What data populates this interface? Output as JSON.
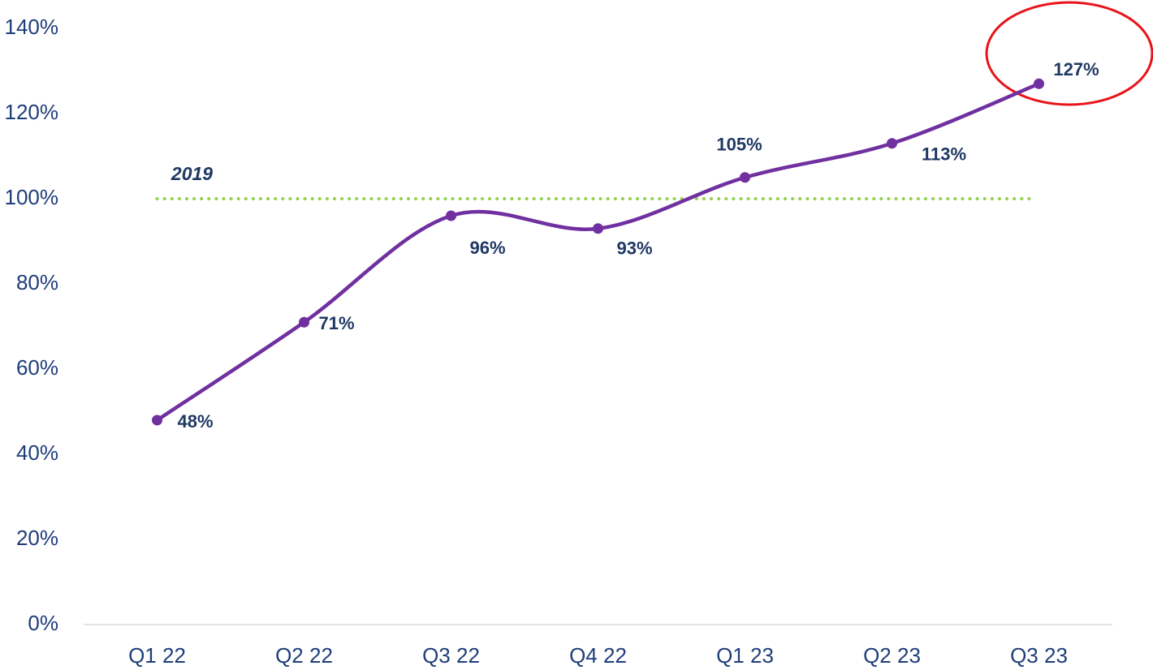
{
  "chart_data": {
    "type": "line",
    "categories": [
      "Q1 22",
      "Q2 22",
      "Q3 22",
      "Q4 22",
      "Q1 23",
      "Q2 23",
      "Q3 23"
    ],
    "series": [
      {
        "color": "#7030a0",
        "values": [
          48,
          71,
          96,
          93,
          105,
          113,
          127
        ],
        "value_labels": [
          "48%",
          "71%",
          "96%",
          "93%",
          "105%",
          "113%",
          "127%"
        ]
      }
    ],
    "ylim": [
      0,
      140
    ],
    "yticks": [
      {
        "value": 0,
        "label": "0%"
      },
      {
        "value": 20,
        "label": "20%"
      },
      {
        "value": 40,
        "label": "40%"
      },
      {
        "value": 60,
        "label": "60%"
      },
      {
        "value": 80,
        "label": "80%"
      },
      {
        "value": 100,
        "label": "100%"
      },
      {
        "value": 120,
        "label": "120%"
      },
      {
        "value": 140,
        "label": "140%"
      }
    ],
    "grid": false,
    "reference_line": {
      "value": 100,
      "label": "2019",
      "color": "#92d050"
    }
  }
}
